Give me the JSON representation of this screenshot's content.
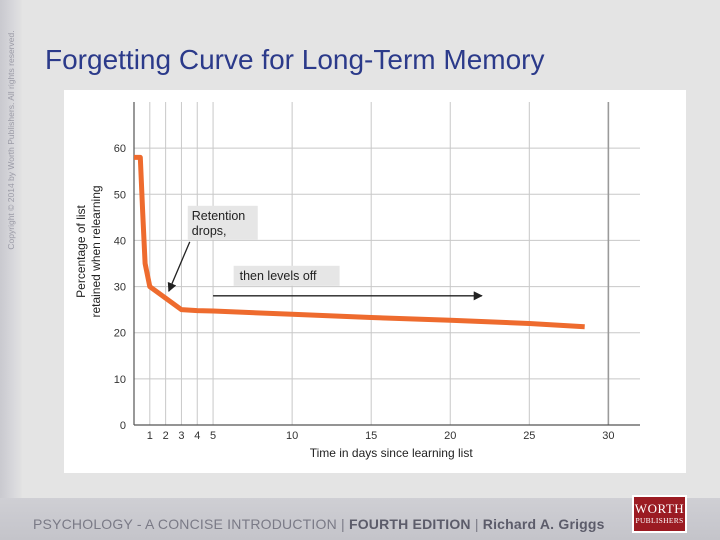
{
  "slide": {
    "title": "Forgetting Curve for Long-Term Memory",
    "copyright": "Copyright © 2014 by Worth Publishers. All rights reserved."
  },
  "footer": {
    "book": "PSYCHOLOGY - A CONCISE INTRODUCTION",
    "separator1": " | ",
    "edition": "FOURTH EDITION",
    "separator2": " | ",
    "author": "Richard A. Griggs",
    "logo_line1": "WORTH",
    "logo_line2": "PUBLISHERS"
  },
  "colors": {
    "title": "#2b3a8a",
    "curve": "#ee6b2e",
    "grid": "#c8c8c8",
    "logo": "#9b1b22"
  },
  "chart_data": {
    "type": "line",
    "title": "",
    "xlabel": "Time in days since learning list",
    "ylabel_line1": "Percentage of list",
    "ylabel_line2": "retained when relearning",
    "xlim": [
      0,
      32
    ],
    "ylim": [
      0,
      70
    ],
    "x_ticks": [
      1,
      2,
      3,
      4,
      5,
      10,
      15,
      20,
      25,
      30
    ],
    "y_ticks": [
      0,
      10,
      20,
      30,
      40,
      50,
      60
    ],
    "x_gridlines": [
      1,
      2,
      3,
      4,
      5,
      10,
      15,
      20,
      25,
      30
    ],
    "grid": true,
    "series": [
      {
        "points": [
          {
            "x": 0,
            "y": 58
          },
          {
            "x": 0.4,
            "y": 58
          },
          {
            "x": 0.55,
            "y": 46
          },
          {
            "x": 0.7,
            "y": 35
          },
          {
            "x": 1,
            "y": 30
          },
          {
            "x": 2,
            "y": 27.5
          },
          {
            "x": 3,
            "y": 25
          },
          {
            "x": 4,
            "y": 24.8
          },
          {
            "x": 5,
            "y": 24.7
          },
          {
            "x": 10,
            "y": 24
          },
          {
            "x": 15,
            "y": 23.3
          },
          {
            "x": 20,
            "y": 22.7
          },
          {
            "x": 25,
            "y": 22
          },
          {
            "x": 28.5,
            "y": 21.3
          }
        ]
      }
    ],
    "annotations": [
      {
        "lines": [
          "Retention",
          "drops,"
        ],
        "arrow_to": {
          "x": 2.2,
          "y": 29
        }
      },
      {
        "lines": [
          "then levels off"
        ],
        "arrow_from": {
          "x": 5,
          "y": 28
        },
        "arrow_to": {
          "x": 22,
          "y": 28
        }
      }
    ]
  }
}
